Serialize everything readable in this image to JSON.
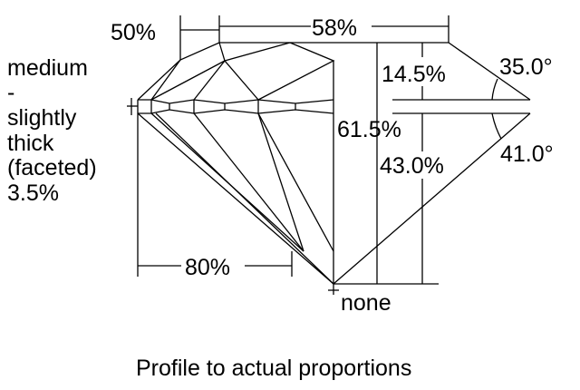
{
  "labels": {
    "crown_height_pct": "50%",
    "table_pct": "58%",
    "crown_depth": "14.5%",
    "crown_angle": "35.0°",
    "total_depth": "61.5%",
    "pavilion_depth": "43.0%",
    "pavilion_angle": "41.0°",
    "lower_half_pct": "80%",
    "culet": "none",
    "girdle_lines": [
      "medium",
      "-",
      "slightly",
      "thick",
      "(faceted)",
      "3.5%"
    ]
  },
  "caption": "Profile to actual proportions"
}
